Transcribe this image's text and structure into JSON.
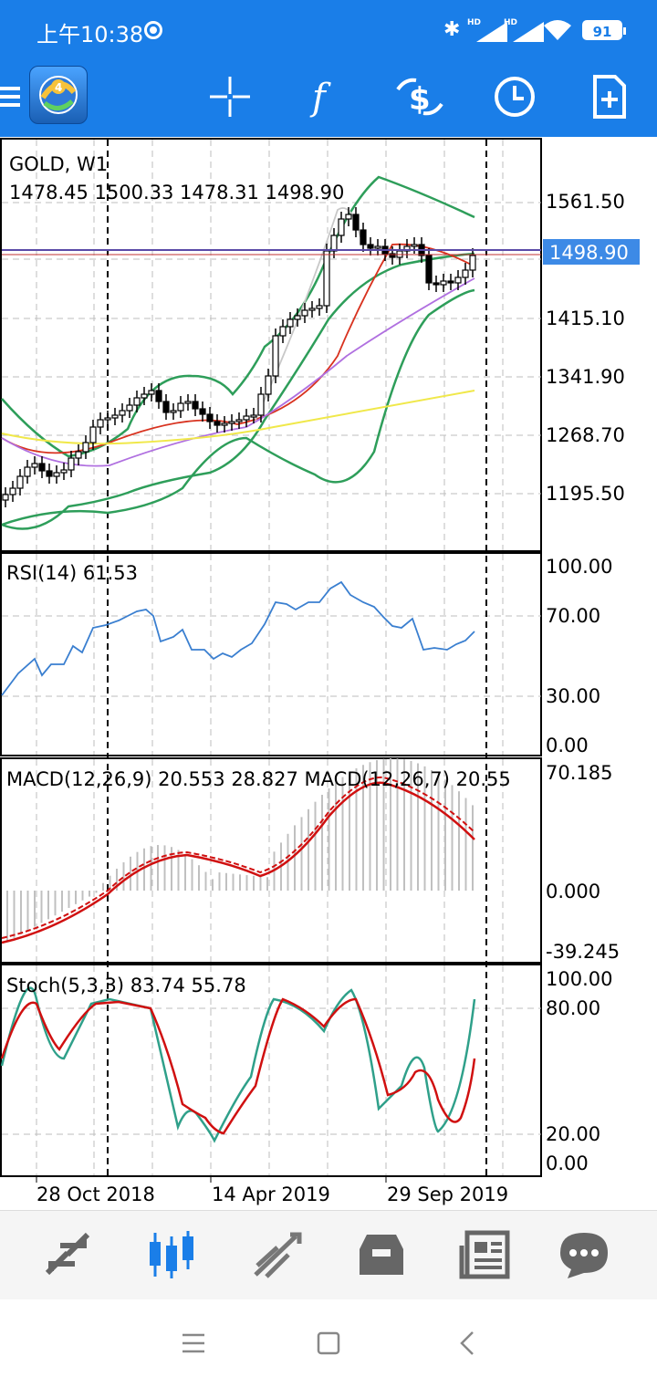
{
  "status_bar": {
    "time": "上午10:38",
    "network_label_1": "HD",
    "network_label_2": "HD",
    "battery": "91"
  },
  "toolbar": {
    "icons": [
      "menu-icon",
      "metatrader-logo",
      "crosshair-icon",
      "indicators-icon",
      "trade-icon",
      "timeframe-icon",
      "add-object-icon"
    ]
  },
  "chart": {
    "symbol": "GOLD, W1",
    "ohlc": "1478.45 1500.33 1478.31 1498.90",
    "current_price": "1498.90",
    "price_axis": [
      "1561.50",
      "1415.10",
      "1341.90",
      "1268.70",
      "1195.50"
    ],
    "rsi": {
      "label": "RSI(14) 61.53",
      "axis": [
        "100.00",
        "70.00",
        "30.00",
        "0.00"
      ]
    },
    "macd": {
      "label": "MACD(12,26,9) 20.553 28.827 MACD(12,26,7) 20.55",
      "axis": [
        "70.185",
        "0.000",
        "-39.245"
      ]
    },
    "stoch": {
      "label": "Stoch(5,3,3) 83.74 55.78",
      "axis": [
        "100.00",
        "80.00",
        "20.00",
        "0.00"
      ]
    },
    "dates": [
      "28 Oct 2018",
      "14 Apr 2019",
      "29 Sep 2019"
    ],
    "colors": {
      "bullish_candle": "#ffffff",
      "bearish_candle": "#000000",
      "bollinger": "#2e9e5a",
      "ma_red": "#d8321f",
      "ma_purple": "#b070e0",
      "ma_yellow": "#f0e84a",
      "ma_gray": "#c8c8c8",
      "rsi_line": "#3a7fd0",
      "macd_line": "#d01010",
      "stoch_main": "#2fa08a",
      "stoch_signal": "#d01010",
      "price_label_bg": "#3d8ae6"
    }
  },
  "bottom_nav": {
    "items": [
      "quotes-icon",
      "chart-icon",
      "trade-icon",
      "history-icon",
      "news-icon",
      "messages-icon"
    ],
    "active": "chart-icon"
  }
}
